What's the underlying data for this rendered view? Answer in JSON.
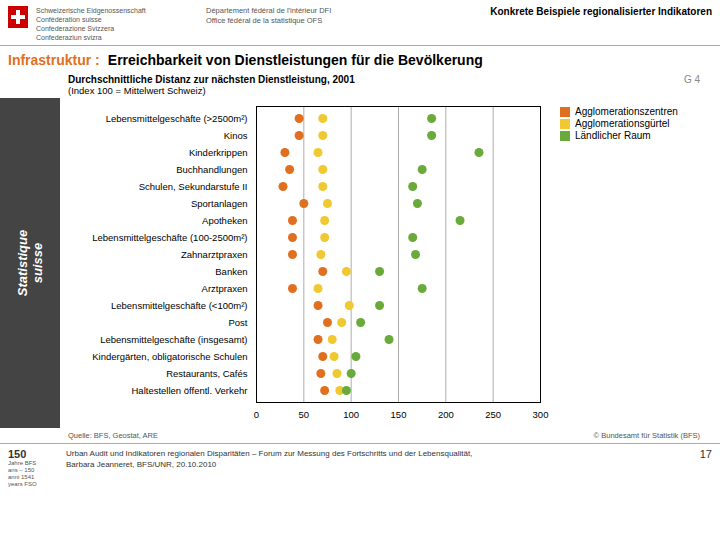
{
  "chart_data": {
    "type": "scatter",
    "title": "Durchschnittliche Distanz zur nächsten Dienstleistung, 2001",
    "subtitle": "(Index 100 = Mittelwert Schweiz)",
    "categories": [
      "Lebensmittelgeschäfte (>2500m²)",
      "Kinos",
      "Kinderkrippen",
      "Buchhandlungen",
      "Schulen, Sekundarstufe II",
      "Sportanlagen",
      "Apotheken",
      "Lebensmittelgeschäfte (100-2500m²)",
      "Zahnarztpraxen",
      "Banken",
      "Arztpraxen",
      "Lebensmittelgeschäfte (<100m²)",
      "Post",
      "Lebensmittelgeschäfte (insgesamt)",
      "Kindergärten, obligatorische Schulen",
      "Restaurants, Cafés",
      "Haltestellen öffentl. Verkehr"
    ],
    "series": [
      {
        "name": "Agglomerationszentren",
        "color": "#E07020",
        "values": [
          45,
          45,
          30,
          35,
          28,
          50,
          38,
          38,
          38,
          70,
          38,
          65,
          75,
          65,
          70,
          68,
          72
        ]
      },
      {
        "name": "Agglomerationsgürtel",
        "color": "#F0C830",
        "values": [
          70,
          70,
          65,
          70,
          70,
          75,
          72,
          72,
          68,
          95,
          65,
          98,
          90,
          80,
          82,
          85,
          88
        ]
      },
      {
        "name": "Ländlicher Raum",
        "color": "#6AAA3A",
        "values": [
          185,
          185,
          235,
          175,
          165,
          170,
          215,
          165,
          168,
          130,
          175,
          130,
          110,
          140,
          105,
          100,
          95
        ]
      }
    ],
    "xlim": [
      0,
      300
    ],
    "xticks": [
      0,
      50,
      100,
      150,
      200,
      250,
      300
    ],
    "grid": true,
    "legend": "right",
    "annotations": [
      "Konkrete Beispiele regionalisierter Indikatoren",
      "Schweizerische Eidgenossenschaft",
      "Confédération suisse",
      "Confederazione Svizzera",
      "Confederaziun svizra",
      "Département fédéral de l'intérieur DFI",
      "Office fédéral de la statistique OFS",
      "Infrastruktur :",
      "Erreichbarkeit von Dienstleistungen für die Bevölkerung",
      "G 4",
      "Statistique\nsuisse",
      "Quelle: BFS, Geostat, ARE",
      "© Bundesamt für Statistik (BFS)",
      "150",
      "Jahre BFS",
      "ans – 150",
      "anni 1541",
      "years FSO",
      "Urban Audit und Indikatoren regionalen Disparitäten – Forum zur Messung des Fortschritts und der Lebensqualität,",
      "Barbara Jeanneret, BFS/UNR, 20.10.2010",
      "17"
    ]
  }
}
